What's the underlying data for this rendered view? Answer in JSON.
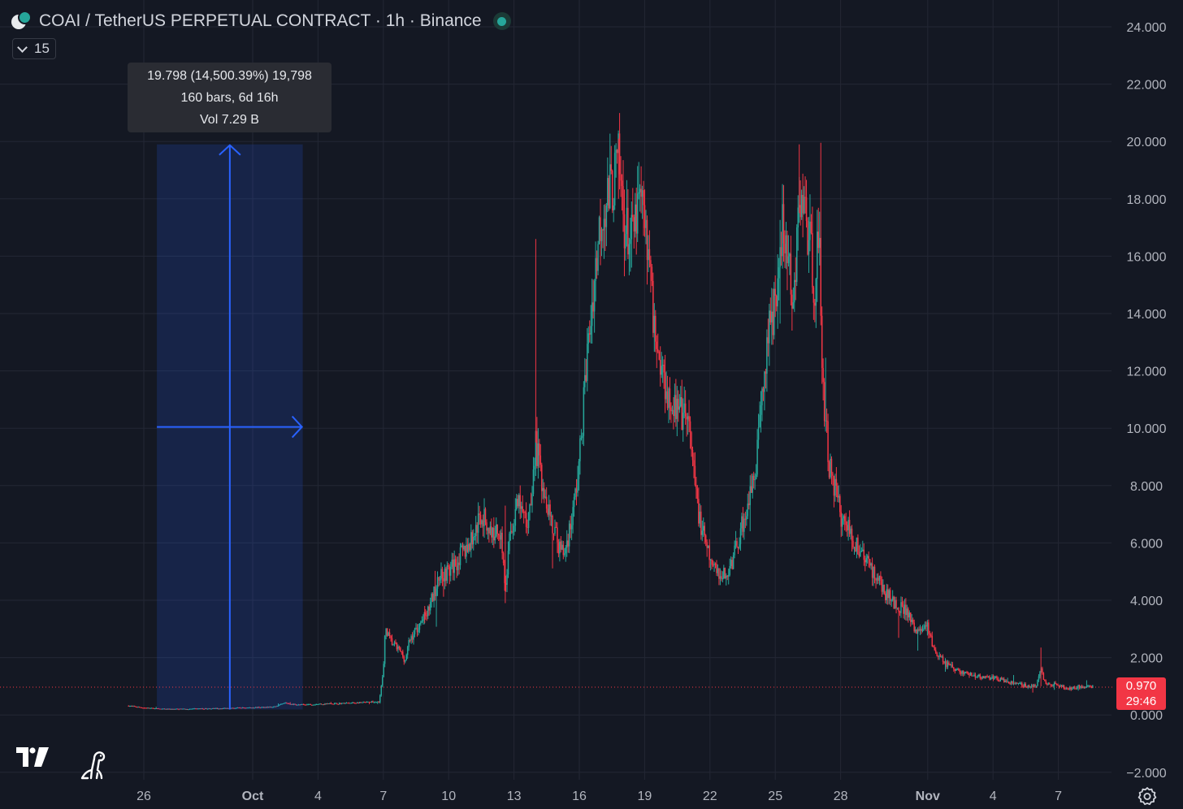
{
  "header": {
    "title": "COAI / TetherUS PERPETUAL CONTRACT · 1h · Binance",
    "symbol_icon": "coai-tether-logo-icon",
    "status_icon": "market-open-dot-icon"
  },
  "indicator_toggle": {
    "value": "15",
    "icon": "chevron-down-icon"
  },
  "measure_tooltip": {
    "line1": "19.798 (14,500.39%) 19,798",
    "line2": "160 bars, 6d 16h",
    "line3": "Vol 7.29 B"
  },
  "price_badge": {
    "price": "0.970",
    "countdown": "29:46",
    "color": "#f23645"
  },
  "colors": {
    "up": "#26a69a",
    "down": "#f23645",
    "background": "#141823",
    "measure": "#2962ff",
    "grid": "#232734"
  },
  "icons": {
    "brand": "tradingview-logo-icon",
    "replay": "dino-icon",
    "settings": "settings-gear-icon"
  },
  "chart_data": {
    "type": "candlestick",
    "interval": "1h",
    "y_ticks": [
      "24.000",
      "22.000",
      "20.000",
      "18.000",
      "16.000",
      "14.000",
      "12.000",
      "10.000",
      "8.000",
      "6.000",
      "4.000",
      "2.000",
      "0.000",
      "−2.000"
    ],
    "x_ticks": [
      "26",
      "Oct",
      "4",
      "7",
      "10",
      "13",
      "16",
      "19",
      "22",
      "25",
      "28",
      "Nov",
      "4",
      "7"
    ],
    "ylim": [
      -2,
      24
    ],
    "grid": true,
    "current_price": 0.97,
    "series": [
      {
        "d": 25.3,
        "v": 0.32
      },
      {
        "d": 26.0,
        "v": 0.25
      },
      {
        "d": 27.0,
        "v": 0.2
      },
      {
        "d": 28.0,
        "v": 0.21
      },
      {
        "d": 29.0,
        "v": 0.22
      },
      {
        "d": 30.0,
        "v": 0.24
      },
      {
        "d": 31.0,
        "v": 0.26
      },
      {
        "d": 32.0,
        "v": 0.28
      },
      {
        "d": 32.5,
        "v": 0.42
      },
      {
        "d": 33.0,
        "v": 0.35
      },
      {
        "d": 34.0,
        "v": 0.38
      },
      {
        "d": 35.0,
        "v": 0.4
      },
      {
        "d": 36.0,
        "v": 0.43
      },
      {
        "d": 36.8,
        "v": 0.46
      },
      {
        "d": 37.0,
        "v": 1.5
      },
      {
        "d": 37.1,
        "v": 3.1
      },
      {
        "d": 37.3,
        "v": 2.6
      },
      {
        "d": 37.8,
        "v": 2.2
      },
      {
        "d": 38.0,
        "v": 1.9
      },
      {
        "d": 38.2,
        "v": 2.6
      },
      {
        "d": 38.6,
        "v": 3.1
      },
      {
        "d": 39.0,
        "v": 3.5
      },
      {
        "d": 39.6,
        "v": 4.9
      },
      {
        "d": 40.0,
        "v": 5.0
      },
      {
        "d": 40.5,
        "v": 5.5
      },
      {
        "d": 41.0,
        "v": 6.0
      },
      {
        "d": 41.5,
        "v": 7.0
      },
      {
        "d": 42.0,
        "v": 6.3
      },
      {
        "d": 42.4,
        "v": 6.5
      },
      {
        "d": 42.6,
        "v": 4.3
      },
      {
        "d": 42.8,
        "v": 6.2
      },
      {
        "d": 43.2,
        "v": 7.4
      },
      {
        "d": 43.6,
        "v": 6.6
      },
      {
        "d": 43.9,
        "v": 8.5
      },
      {
        "d": 44.0,
        "v": 9.5
      },
      {
        "d": 44.2,
        "v": 8.5
      },
      {
        "d": 44.6,
        "v": 7.2
      },
      {
        "d": 45.0,
        "v": 6.0
      },
      {
        "d": 45.3,
        "v": 5.6
      },
      {
        "d": 45.7,
        "v": 7.0
      },
      {
        "d": 46.0,
        "v": 8.8
      },
      {
        "d": 46.3,
        "v": 12.0
      },
      {
        "d": 46.6,
        "v": 14.5
      },
      {
        "d": 47.0,
        "v": 17.5
      },
      {
        "d": 47.4,
        "v": 18.2
      },
      {
        "d": 47.8,
        "v": 19.2
      },
      {
        "d": 48.1,
        "v": 17.0
      },
      {
        "d": 48.4,
        "v": 16.5
      },
      {
        "d": 48.8,
        "v": 18.0
      },
      {
        "d": 49.2,
        "v": 16.0
      },
      {
        "d": 49.5,
        "v": 13.0
      },
      {
        "d": 49.8,
        "v": 12.0
      },
      {
        "d": 50.2,
        "v": 11.0
      },
      {
        "d": 50.6,
        "v": 10.5
      },
      {
        "d": 51.0,
        "v": 10.2
      },
      {
        "d": 51.3,
        "v": 8.0
      },
      {
        "d": 51.6,
        "v": 6.5
      },
      {
        "d": 52.0,
        "v": 5.4
      },
      {
        "d": 52.4,
        "v": 4.8
      },
      {
        "d": 52.8,
        "v": 4.9
      },
      {
        "d": 53.2,
        "v": 5.8
      },
      {
        "d": 53.6,
        "v": 7.0
      },
      {
        "d": 54.0,
        "v": 8.0
      },
      {
        "d": 54.3,
        "v": 10.0
      },
      {
        "d": 54.6,
        "v": 13.0
      },
      {
        "d": 55.0,
        "v": 14.5
      },
      {
        "d": 55.3,
        "v": 17.0
      },
      {
        "d": 55.6,
        "v": 16.0
      },
      {
        "d": 55.8,
        "v": 13.5
      },
      {
        "d": 56.1,
        "v": 18.0
      },
      {
        "d": 56.4,
        "v": 17.5
      },
      {
        "d": 56.8,
        "v": 15.0
      },
      {
        "d": 57.0,
        "v": 16.8
      },
      {
        "d": 57.2,
        "v": 11.0
      },
      {
        "d": 57.5,
        "v": 8.6
      },
      {
        "d": 58.0,
        "v": 7.0
      },
      {
        "d": 58.5,
        "v": 6.2
      },
      {
        "d": 59.0,
        "v": 5.6
      },
      {
        "d": 59.5,
        "v": 5.0
      },
      {
        "d": 60.0,
        "v": 4.3
      },
      {
        "d": 60.5,
        "v": 3.9
      },
      {
        "d": 61.0,
        "v": 3.6
      },
      {
        "d": 61.5,
        "v": 2.9
      },
      {
        "d": 62.0,
        "v": 3.1
      },
      {
        "d": 62.3,
        "v": 2.2
      },
      {
        "d": 62.8,
        "v": 1.8
      },
      {
        "d": 63.5,
        "v": 1.5
      },
      {
        "d": 64.0,
        "v": 1.4
      },
      {
        "d": 64.5,
        "v": 1.3
      },
      {
        "d": 65.0,
        "v": 1.3
      },
      {
        "d": 65.5,
        "v": 1.2
      },
      {
        "d": 66.0,
        "v": 1.1
      },
      {
        "d": 66.6,
        "v": 1.0
      },
      {
        "d": 67.0,
        "v": 1.05
      },
      {
        "d": 67.2,
        "v": 1.6
      },
      {
        "d": 67.4,
        "v": 1.1
      },
      {
        "d": 68.0,
        "v": 1.05
      },
      {
        "d": 68.4,
        "v": 0.9
      },
      {
        "d": 69.0,
        "v": 1.0
      },
      {
        "d": 69.6,
        "v": 0.97
      }
    ],
    "measurement": {
      "start_day": 26.6,
      "end_day": 33.3,
      "from_price": 0.19,
      "to_price": 19.9
    }
  }
}
